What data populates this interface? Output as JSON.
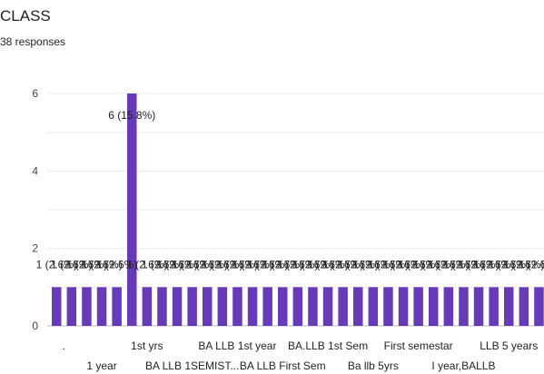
{
  "header": {
    "title": "CLASS",
    "responses": "38 responses"
  },
  "chart_data": {
    "type": "bar",
    "ylim": [
      0,
      6
    ],
    "yticks": [
      0,
      2,
      4,
      6
    ],
    "bar_color": "#673ab7",
    "grid": true,
    "values": [
      1,
      1,
      1,
      1,
      1,
      6,
      1,
      1,
      1,
      1,
      1,
      1,
      1,
      1,
      1,
      1,
      1,
      1,
      1,
      1,
      1,
      1,
      1,
      1,
      1,
      1,
      1,
      1,
      1,
      1,
      1,
      1,
      1
    ],
    "data_labels": [
      "1 (2.6%)",
      "1 (2.6%)",
      "1 (2.6%)",
      "1 (2.6%)",
      "1 (2.6%)",
      "6 (15.8%)",
      "1 (2.6%)",
      "1 (2.6%)",
      "1 (2.6%)",
      "1 (2.6%)",
      "1 (2.6%)",
      "1 (2.6%)",
      "1 (2.6%)",
      "1 (2.6%)",
      "1 (2.6%)",
      "1 (2.6%)",
      "1 (2.6%)",
      "1 (2.6%)",
      "1 (2.6%)",
      "1 (2.6%)",
      "1 (2.6%)",
      "1 (2.6%)",
      "1 (2.6%)",
      "1 (2.6%)",
      "1 (2.6%)",
      "1 (2.6%)",
      "1 (2.6%)",
      "1 (2.6%)",
      "1 (2.6%)",
      "1 (2.6%)",
      "1 (2.6%)",
      "1 (2.6%)",
      "1 (2.6%)"
    ],
    "x_labels": [
      {
        "text": ".",
        "row": 1
      },
      {
        "text": "1 year",
        "row": 2
      },
      {
        "text": "1st yrs",
        "row": 1
      },
      {
        "text": "BA LLB 1SEMIST...",
        "row": 2
      },
      {
        "text": "BA LLB 1st year",
        "row": 1
      },
      {
        "text": "BA LLB First Sem",
        "row": 2
      },
      {
        "text": "BA.LLB 1st Sem",
        "row": 1
      },
      {
        "text": "Ba llb 5yrs",
        "row": 2
      },
      {
        "text": "First semestar",
        "row": 1
      },
      {
        "text": "I year,BALLB",
        "row": 2
      },
      {
        "text": "LLB 5 years",
        "row": 1
      }
    ]
  }
}
